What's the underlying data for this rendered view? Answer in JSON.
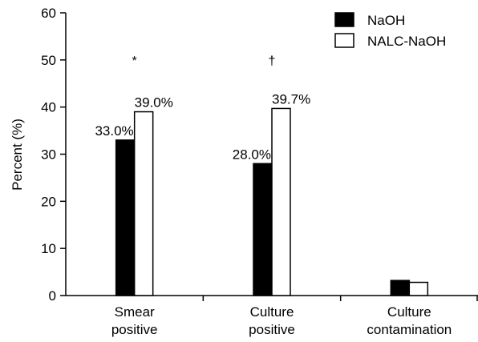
{
  "chart_data": {
    "type": "bar",
    "ylabel": "Percent (%)",
    "xlabel": "",
    "ylim": [
      0,
      60
    ],
    "yticks": [
      0,
      10,
      20,
      30,
      40,
      50,
      60
    ],
    "categories": [
      [
        "Smear",
        "positive"
      ],
      [
        "Culture",
        "positive"
      ],
      [
        "Culture",
        "contamination"
      ]
    ],
    "series": [
      {
        "name": "NaOH",
        "values": [
          33.0,
          28.0,
          3.2
        ],
        "labels": [
          "33.0%",
          "28.0%",
          ""
        ],
        "color": "#000000"
      },
      {
        "name": "NALC-NaOH",
        "values": [
          39.0,
          39.7,
          2.8
        ],
        "labels": [
          "39.0%",
          "39.7%",
          ""
        ],
        "color": "#ffffff"
      }
    ],
    "annotations": [
      {
        "category": 0,
        "y": 50,
        "text": "*"
      },
      {
        "category": 1,
        "y": 50,
        "text": "†"
      }
    ],
    "legend": "top-right",
    "grid": false
  }
}
